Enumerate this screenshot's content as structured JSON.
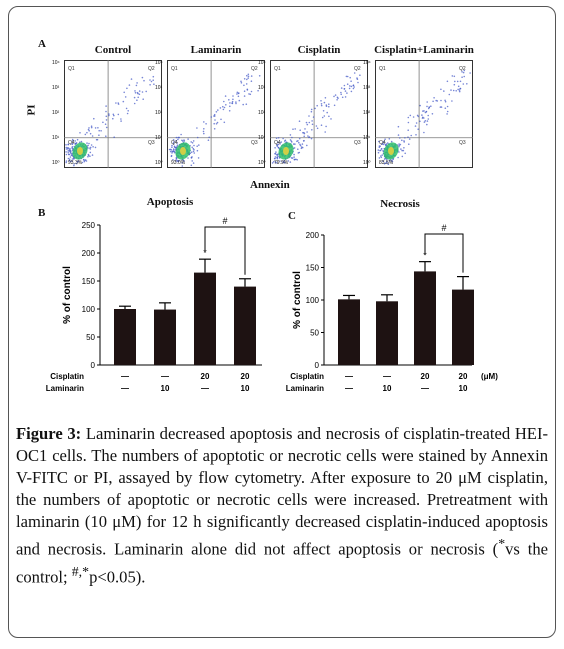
{
  "panel_a": {
    "label": "A",
    "titles": [
      "Control",
      "Laminarin",
      "Cisplatin",
      "Cisplatin+Laminarin"
    ],
    "ylabel": "PI",
    "xlabel": "Annexin",
    "quadrant_labels": [
      "Q1",
      "Q2",
      "Q3",
      "Q4"
    ],
    "percents": [
      "93.3%",
      "93.0%",
      "79.9%",
      "83.5%"
    ],
    "colors": {
      "dots": "#4a5ec8",
      "core": "#2fc06a",
      "hot": "#e0d040"
    }
  },
  "chart_data": [
    {
      "type": "bar",
      "panel": "B",
      "title": "Apoptosis",
      "ylabel": "% of control",
      "ylim": [
        0,
        250
      ],
      "yticks": [
        0,
        50,
        100,
        150,
        200,
        250
      ],
      "categories": [
        "Control",
        "Laminarin",
        "Cisplatin",
        "Cisplatin+Laminarin"
      ],
      "values": [
        100,
        99,
        165,
        140
      ],
      "errors": [
        5,
        12,
        24,
        14
      ],
      "markers": [
        "",
        "",
        "*",
        ""
      ],
      "bracket": {
        "from": 2,
        "to": 3,
        "label": "#"
      },
      "treatment_rows": [
        {
          "name": "Cisplatin",
          "values": [
            "—",
            "—",
            "20",
            "20"
          ]
        },
        {
          "name": "Laminarin",
          "values": [
            "—",
            "10",
            "—",
            "10"
          ]
        }
      ],
      "bar_color": "#1e1212"
    },
    {
      "type": "bar",
      "panel": "C",
      "title": "Necrosis",
      "ylabel": "% of control",
      "ylim": [
        0,
        200
      ],
      "yticks": [
        0,
        50,
        100,
        150,
        200
      ],
      "categories": [
        "Control",
        "Laminarin",
        "Cisplatin",
        "Cisplatin+Laminarin"
      ],
      "values": [
        101,
        98,
        144,
        116
      ],
      "errors": [
        6,
        10,
        15,
        20
      ],
      "markers": [
        "",
        "",
        "*",
        ""
      ],
      "bracket": {
        "from": 2,
        "to": 3,
        "label": "#"
      },
      "treatment_rows": [
        {
          "name": "Cisplatin",
          "values": [
            "—",
            "—",
            "20",
            "20"
          ]
        },
        {
          "name": "Laminarin",
          "values": [
            "—",
            "10",
            "—",
            "10"
          ]
        }
      ],
      "unit": "(μM)",
      "bar_color": "#1e1212"
    }
  ],
  "caption": {
    "label": "Figure 3:",
    "text": " Laminarin decreased apoptosis and necrosis of cisplatin-treated HEI-OC1 cells. The numbers of apoptotic or necrotic cells were stained by Annexin V-FITC or PI, assayed by flow cytometry. After exposure to 20 μM cisplatin, the numbers of apoptotic or necrotic cells were increased. Pretreatment with laminarin (10 μM) for 12 h significantly decreased cisplatin-induced apoptosis and necrosis. Laminarin alone did not affect apoptosis or necrosis (",
    "sup1": "*",
    "text2": "vs the control; ",
    "sup2": "#,*",
    "text3": "p<0.05)."
  }
}
